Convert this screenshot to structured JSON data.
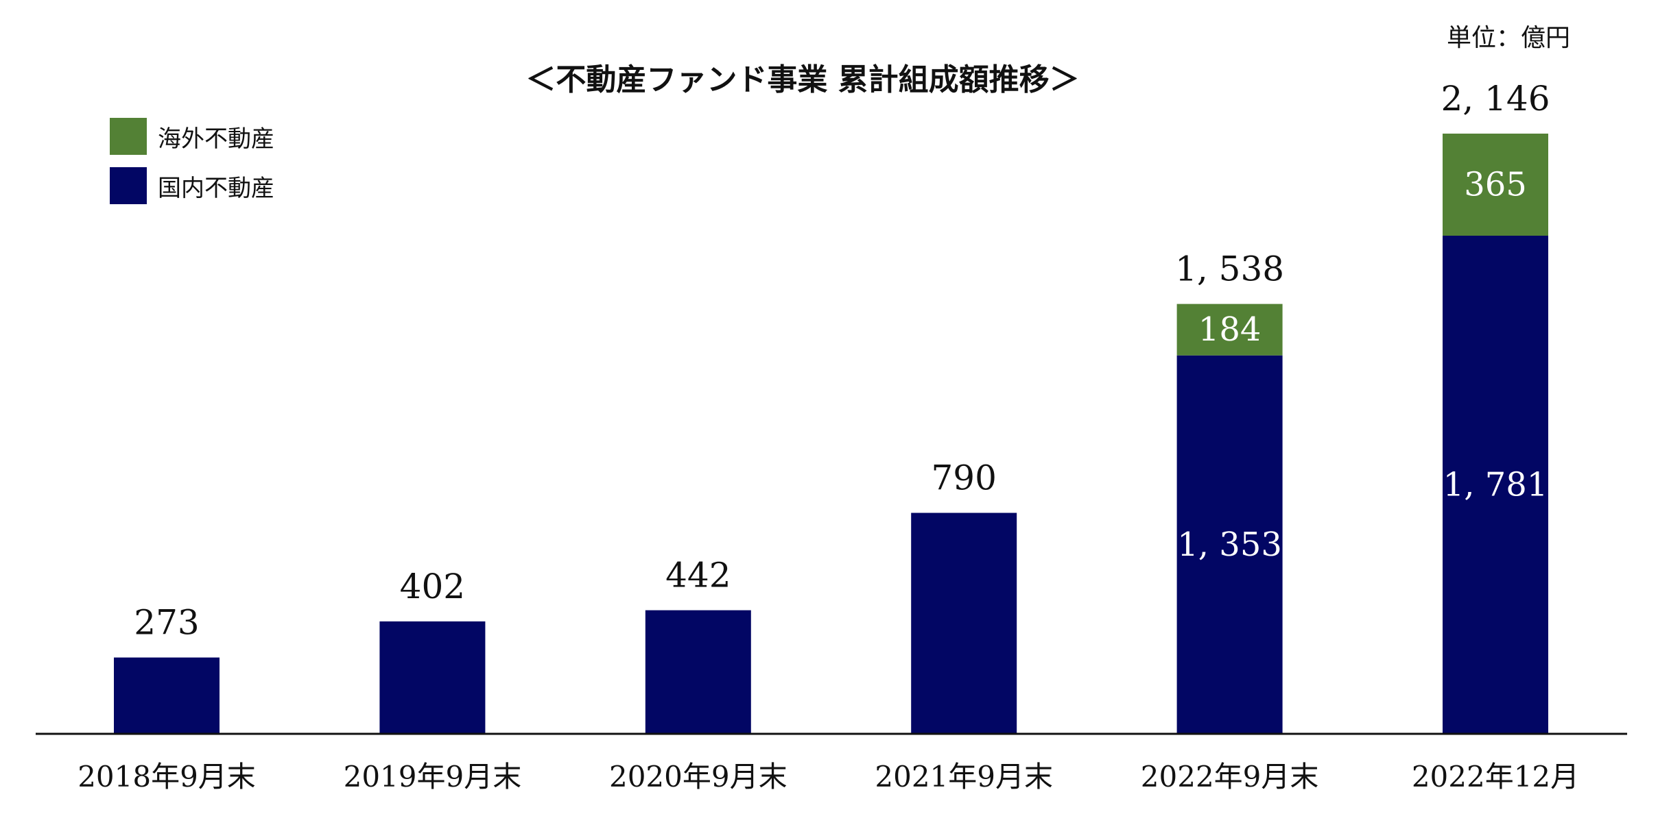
{
  "chart_data": {
    "type": "bar",
    "stacked": true,
    "title": "＜不動産ファンド事業 累計組成額推移＞",
    "unit": "単位：億円",
    "categories": [
      "2018年9月末",
      "2019年9月末",
      "2020年9月末",
      "2021年9月末",
      "2022年9月末",
      "2022年12月"
    ],
    "series": [
      {
        "name": "国内不動産",
        "values": [
          273,
          402,
          442,
          790,
          1353,
          1781
        ],
        "color": "#020664",
        "labels": [
          "",
          "",
          "",
          "",
          "1, 353",
          "1, 781"
        ]
      },
      {
        "name": "海外不動産",
        "values": [
          0,
          0,
          0,
          0,
          184,
          365
        ],
        "color": "#538135",
        "labels": [
          "",
          "",
          "",
          "",
          "184",
          "365"
        ]
      }
    ],
    "totals": [
      "273",
      "402",
      "442",
      "790",
      "1, 538",
      "2, 146"
    ],
    "legend_position": "top-left",
    "ylim": [
      0,
      2146
    ],
    "grid": false
  },
  "legend": [
    {
      "name": "海外不動産",
      "color": "#538135"
    },
    {
      "name": "国内不動産",
      "color": "#020664"
    }
  ]
}
